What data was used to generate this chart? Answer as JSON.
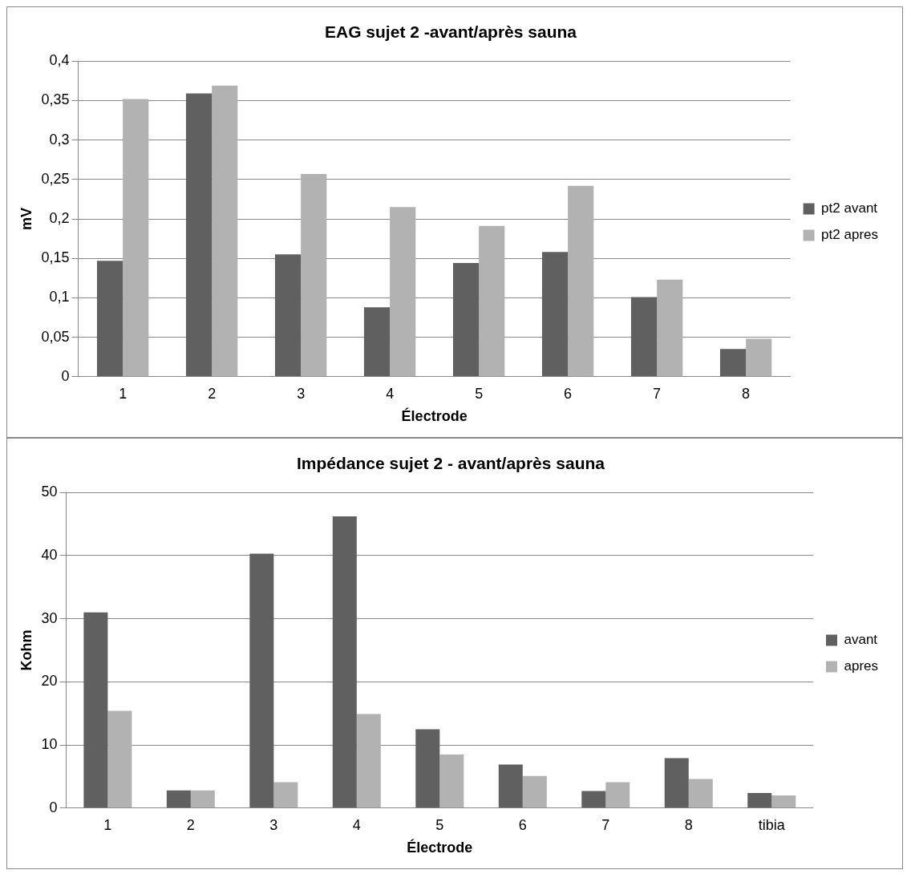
{
  "chart_data": [
    {
      "type": "bar",
      "title": "EAG sujet 2 -avant/après sauna",
      "xlabel": "Électrode",
      "ylabel": "mV",
      "categories": [
        "1",
        "2",
        "3",
        "4",
        "5",
        "6",
        "7",
        "8"
      ],
      "series": [
        {
          "name": "pt2 avant",
          "color": "#606060",
          "values": [
            0.147,
            0.359,
            0.155,
            0.088,
            0.144,
            0.158,
            0.101,
            0.035
          ]
        },
        {
          "name": "pt2 apres",
          "color": "#b2b2b2",
          "values": [
            0.352,
            0.369,
            0.257,
            0.215,
            0.191,
            0.242,
            0.123,
            0.048
          ]
        }
      ],
      "ylim": [
        0,
        0.4
      ],
      "yticks": [
        0,
        {
          "value": 0.05,
          "label": "0,05"
        },
        {
          "value": 0.1,
          "label": "0,1"
        },
        {
          "value": 0.15,
          "label": "0,15"
        },
        {
          "value": 0.2,
          "label": "0,2"
        },
        {
          "value": 0.25,
          "label": "0,25"
        },
        {
          "value": 0.3,
          "label": "0,3"
        },
        {
          "value": 0.35,
          "label": "0,35"
        },
        {
          "value": 0.4,
          "label": "0,4"
        }
      ],
      "grid": "y",
      "legend": "right"
    },
    {
      "type": "bar",
      "title": "Impédance sujet 2 - avant/après sauna",
      "xlabel": "Électrode",
      "ylabel": "Kohm",
      "categories": [
        "1",
        "2",
        "3",
        "4",
        "5",
        "6",
        "7",
        "8",
        "tibia"
      ],
      "series": [
        {
          "name": "avant",
          "color": "#606060",
          "values": [
            31.0,
            2.8,
            40.3,
            46.2,
            12.5,
            6.9,
            2.7,
            7.9,
            2.4
          ]
        },
        {
          "name": "apres",
          "color": "#b2b2b2",
          "values": [
            15.4,
            2.8,
            4.1,
            14.9,
            8.5,
            5.1,
            4.1,
            4.6,
            2.0
          ]
        }
      ],
      "ylim": [
        0,
        50
      ],
      "yticks": [
        0,
        10,
        20,
        30,
        40,
        50
      ],
      "grid": "y",
      "legend": "right"
    }
  ]
}
